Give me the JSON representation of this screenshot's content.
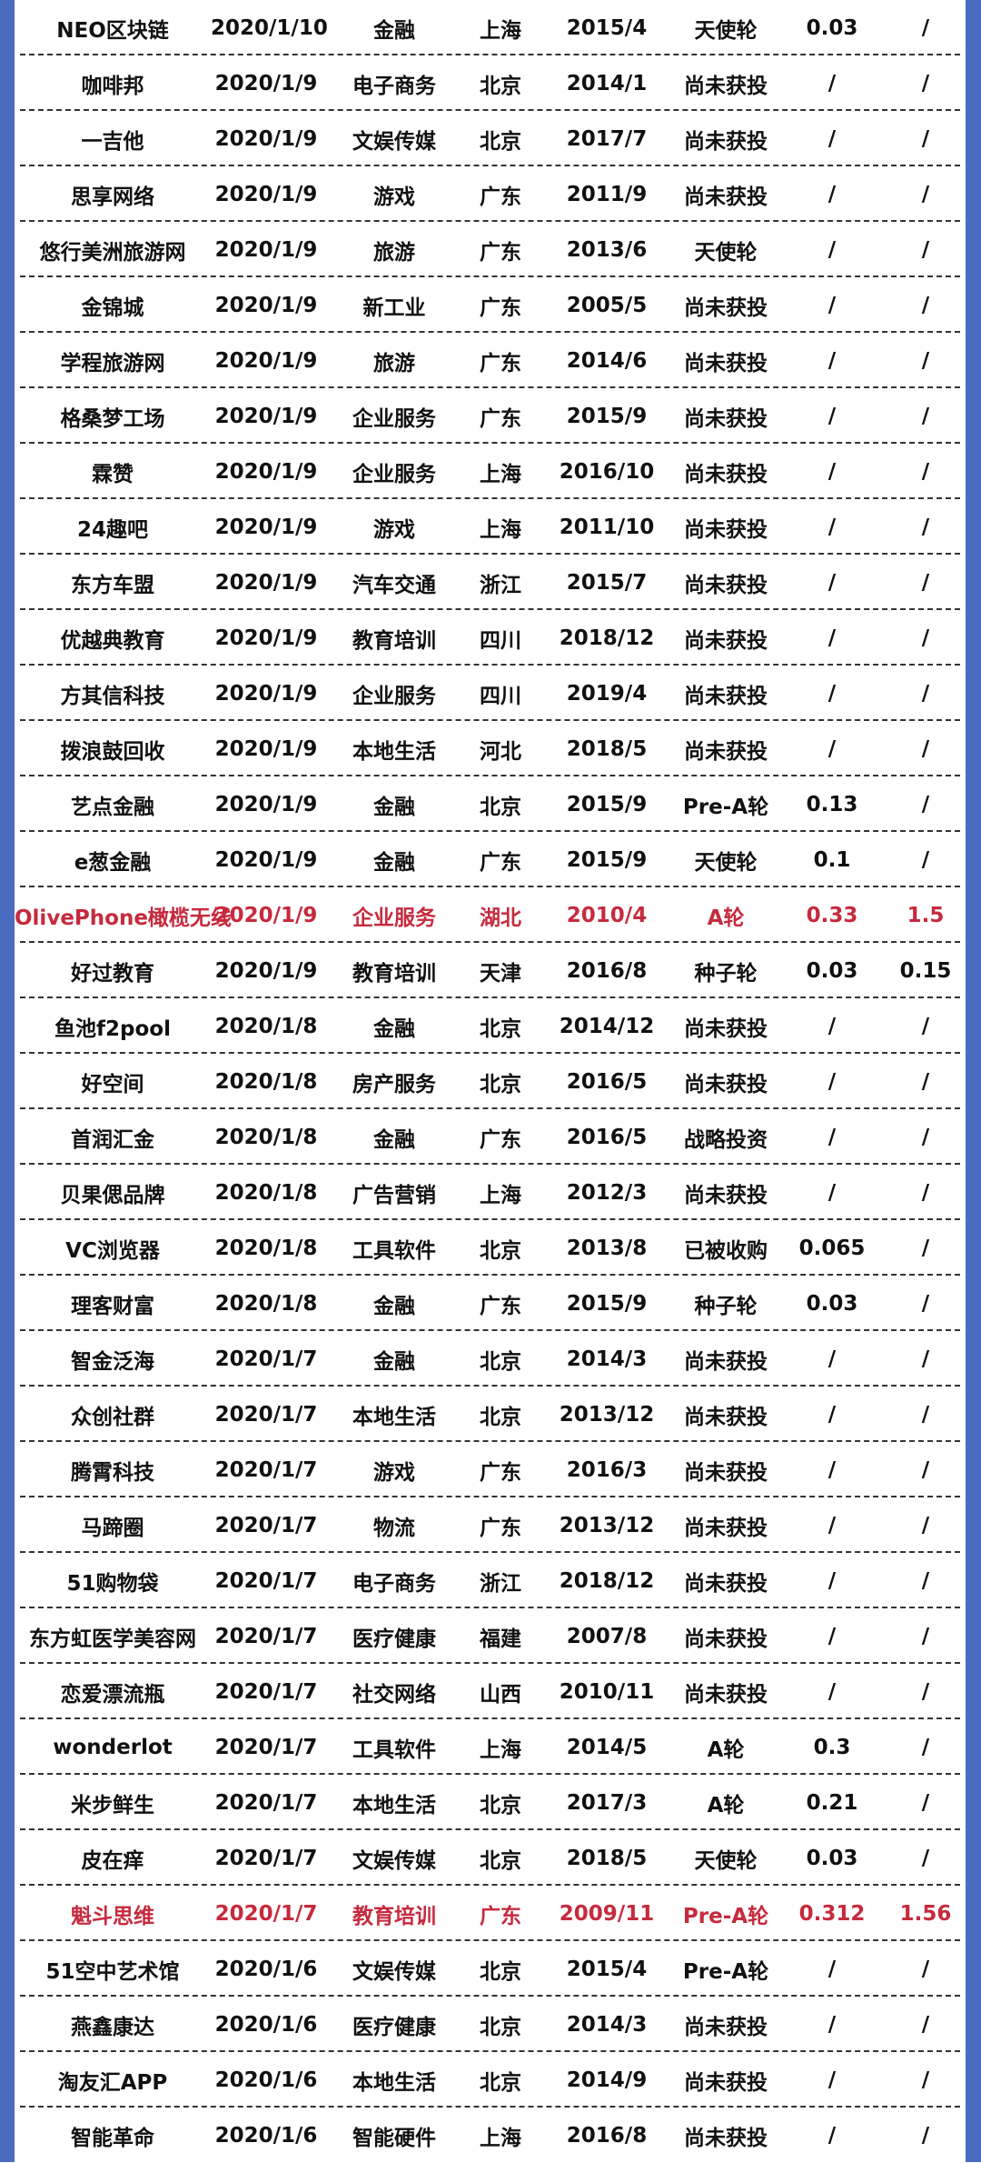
{
  "colors": {
    "border": "#4a6cc0",
    "highlight": "#c62a3e",
    "text": "#111111"
  },
  "rows": [
    {
      "name": "NEO区块链",
      "date": "2020/1/10",
      "industry": "金融",
      "region": "上海",
      "founded": "2015/4",
      "round": "天使轮",
      "v1": "0.03",
      "v2": "/",
      "highlight": false
    },
    {
      "name": "咖啡邦",
      "date": "2020/1/9",
      "industry": "电子商务",
      "region": "北京",
      "founded": "2014/1",
      "round": "尚未获投",
      "v1": "/",
      "v2": "/",
      "highlight": false
    },
    {
      "name": "一吉他",
      "date": "2020/1/9",
      "industry": "文娱传媒",
      "region": "北京",
      "founded": "2017/7",
      "round": "尚未获投",
      "v1": "/",
      "v2": "/",
      "highlight": false
    },
    {
      "name": "思享网络",
      "date": "2020/1/9",
      "industry": "游戏",
      "region": "广东",
      "founded": "2011/9",
      "round": "尚未获投",
      "v1": "/",
      "v2": "/",
      "highlight": false
    },
    {
      "name": "悠行美洲旅游网",
      "date": "2020/1/9",
      "industry": "旅游",
      "region": "广东",
      "founded": "2013/6",
      "round": "天使轮",
      "v1": "/",
      "v2": "/",
      "highlight": false
    },
    {
      "name": "金锦城",
      "date": "2020/1/9",
      "industry": "新工业",
      "region": "广东",
      "founded": "2005/5",
      "round": "尚未获投",
      "v1": "/",
      "v2": "/",
      "highlight": false
    },
    {
      "name": "学程旅游网",
      "date": "2020/1/9",
      "industry": "旅游",
      "region": "广东",
      "founded": "2014/6",
      "round": "尚未获投",
      "v1": "/",
      "v2": "/",
      "highlight": false
    },
    {
      "name": "格桑梦工场",
      "date": "2020/1/9",
      "industry": "企业服务",
      "region": "广东",
      "founded": "2015/9",
      "round": "尚未获投",
      "v1": "/",
      "v2": "/",
      "highlight": false
    },
    {
      "name": "霖赞",
      "date": "2020/1/9",
      "industry": "企业服务",
      "region": "上海",
      "founded": "2016/10",
      "round": "尚未获投",
      "v1": "/",
      "v2": "/",
      "highlight": false
    },
    {
      "name": "24趣吧",
      "date": "2020/1/9",
      "industry": "游戏",
      "region": "上海",
      "founded": "2011/10",
      "round": "尚未获投",
      "v1": "/",
      "v2": "/",
      "highlight": false
    },
    {
      "name": "东方车盟",
      "date": "2020/1/9",
      "industry": "汽车交通",
      "region": "浙江",
      "founded": "2015/7",
      "round": "尚未获投",
      "v1": "/",
      "v2": "/",
      "highlight": false
    },
    {
      "name": "优越典教育",
      "date": "2020/1/9",
      "industry": "教育培训",
      "region": "四川",
      "founded": "2018/12",
      "round": "尚未获投",
      "v1": "/",
      "v2": "/",
      "highlight": false
    },
    {
      "name": "方其信科技",
      "date": "2020/1/9",
      "industry": "企业服务",
      "region": "四川",
      "founded": "2019/4",
      "round": "尚未获投",
      "v1": "/",
      "v2": "/",
      "highlight": false
    },
    {
      "name": "拨浪鼓回收",
      "date": "2020/1/9",
      "industry": "本地生活",
      "region": "河北",
      "founded": "2018/5",
      "round": "尚未获投",
      "v1": "/",
      "v2": "/",
      "highlight": false
    },
    {
      "name": "艺点金融",
      "date": "2020/1/9",
      "industry": "金融",
      "region": "北京",
      "founded": "2015/9",
      "round": "Pre-A轮",
      "v1": "0.13",
      "v2": "/",
      "highlight": false
    },
    {
      "name": "e葱金融",
      "date": "2020/1/9",
      "industry": "金融",
      "region": "广东",
      "founded": "2015/9",
      "round": "天使轮",
      "v1": "0.1",
      "v2": "/",
      "highlight": false
    },
    {
      "name": "OlivePhone橄榄无线",
      "date": "2020/1/9",
      "industry": "企业服务",
      "region": "湖北",
      "founded": "2010/4",
      "round": "A轮",
      "v1": "0.33",
      "v2": "1.5",
      "highlight": true
    },
    {
      "name": "好过教育",
      "date": "2020/1/9",
      "industry": "教育培训",
      "region": "天津",
      "founded": "2016/8",
      "round": "种子轮",
      "v1": "0.03",
      "v2": "0.15",
      "highlight": false
    },
    {
      "name": "鱼池f2pool",
      "date": "2020/1/8",
      "industry": "金融",
      "region": "北京",
      "founded": "2014/12",
      "round": "尚未获投",
      "v1": "/",
      "v2": "/",
      "highlight": false
    },
    {
      "name": "好空间",
      "date": "2020/1/8",
      "industry": "房产服务",
      "region": "北京",
      "founded": "2016/5",
      "round": "尚未获投",
      "v1": "/",
      "v2": "/",
      "highlight": false
    },
    {
      "name": "首润汇金",
      "date": "2020/1/8",
      "industry": "金融",
      "region": "广东",
      "founded": "2016/5",
      "round": "战略投资",
      "v1": "/",
      "v2": "/",
      "highlight": false
    },
    {
      "name": "贝果偲品牌",
      "date": "2020/1/8",
      "industry": "广告营销",
      "region": "上海",
      "founded": "2012/3",
      "round": "尚未获投",
      "v1": "/",
      "v2": "/",
      "highlight": false
    },
    {
      "name": "VC浏览器",
      "date": "2020/1/8",
      "industry": "工具软件",
      "region": "北京",
      "founded": "2013/8",
      "round": "已被收购",
      "v1": "0.065",
      "v2": "/",
      "highlight": false
    },
    {
      "name": "理客财富",
      "date": "2020/1/8",
      "industry": "金融",
      "region": "广东",
      "founded": "2015/9",
      "round": "种子轮",
      "v1": "0.03",
      "v2": "/",
      "highlight": false
    },
    {
      "name": "智金泛海",
      "date": "2020/1/7",
      "industry": "金融",
      "region": "北京",
      "founded": "2014/3",
      "round": "尚未获投",
      "v1": "/",
      "v2": "/",
      "highlight": false
    },
    {
      "name": "众创社群",
      "date": "2020/1/7",
      "industry": "本地生活",
      "region": "北京",
      "founded": "2013/12",
      "round": "尚未获投",
      "v1": "/",
      "v2": "/",
      "highlight": false
    },
    {
      "name": "腾霄科技",
      "date": "2020/1/7",
      "industry": "游戏",
      "region": "广东",
      "founded": "2016/3",
      "round": "尚未获投",
      "v1": "/",
      "v2": "/",
      "highlight": false
    },
    {
      "name": "马蹄圈",
      "date": "2020/1/7",
      "industry": "物流",
      "region": "广东",
      "founded": "2013/12",
      "round": "尚未获投",
      "v1": "/",
      "v2": "/",
      "highlight": false
    },
    {
      "name": "51购物袋",
      "date": "2020/1/7",
      "industry": "电子商务",
      "region": "浙江",
      "founded": "2018/12",
      "round": "尚未获投",
      "v1": "/",
      "v2": "/",
      "highlight": false
    },
    {
      "name": "东方虹医学美容网",
      "date": "2020/1/7",
      "industry": "医疗健康",
      "region": "福建",
      "founded": "2007/8",
      "round": "尚未获投",
      "v1": "/",
      "v2": "/",
      "highlight": false
    },
    {
      "name": "恋爱漂流瓶",
      "date": "2020/1/7",
      "industry": "社交网络",
      "region": "山西",
      "founded": "2010/11",
      "round": "尚未获投",
      "v1": "/",
      "v2": "/",
      "highlight": false
    },
    {
      "name": "wonderlot",
      "date": "2020/1/7",
      "industry": "工具软件",
      "region": "上海",
      "founded": "2014/5",
      "round": "A轮",
      "v1": "0.3",
      "v2": "/",
      "highlight": false
    },
    {
      "name": "米步鲜生",
      "date": "2020/1/7",
      "industry": "本地生活",
      "region": "北京",
      "founded": "2017/3",
      "round": "A轮",
      "v1": "0.21",
      "v2": "/",
      "highlight": false
    },
    {
      "name": "皮在痒",
      "date": "2020/1/7",
      "industry": "文娱传媒",
      "region": "北京",
      "founded": "2018/5",
      "round": "天使轮",
      "v1": "0.03",
      "v2": "/",
      "highlight": false
    },
    {
      "name": "魁斗思维",
      "date": "2020/1/7",
      "industry": "教育培训",
      "region": "广东",
      "founded": "2009/11",
      "round": "Pre-A轮",
      "v1": "0.312",
      "v2": "1.56",
      "highlight": true
    },
    {
      "name": "51空中艺术馆",
      "date": "2020/1/6",
      "industry": "文娱传媒",
      "region": "北京",
      "founded": "2015/4",
      "round": "Pre-A轮",
      "v1": "/",
      "v2": "/",
      "highlight": false
    },
    {
      "name": "燕鑫康达",
      "date": "2020/1/6",
      "industry": "医疗健康",
      "region": "北京",
      "founded": "2014/3",
      "round": "尚未获投",
      "v1": "/",
      "v2": "/",
      "highlight": false
    },
    {
      "name": "淘友汇APP",
      "date": "2020/1/6",
      "industry": "本地生活",
      "region": "北京",
      "founded": "2014/9",
      "round": "尚未获投",
      "v1": "/",
      "v2": "/",
      "highlight": false
    },
    {
      "name": "智能革命",
      "date": "2020/1/6",
      "industry": "智能硬件",
      "region": "上海",
      "founded": "2016/8",
      "round": "尚未获投",
      "v1": "/",
      "v2": "/",
      "highlight": false
    }
  ]
}
